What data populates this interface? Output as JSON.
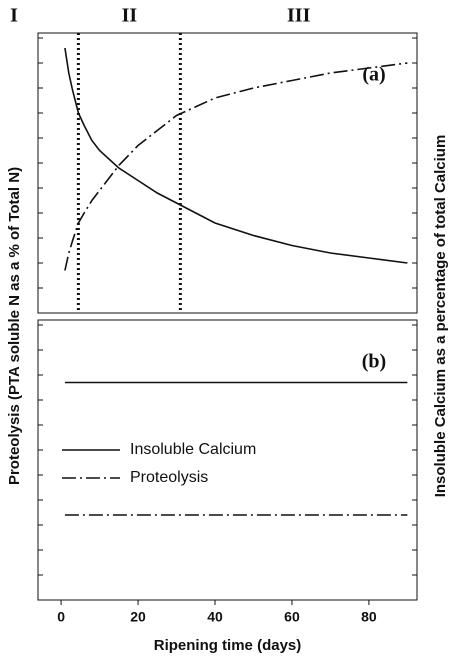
{
  "chart_data": [
    {
      "type": "line",
      "panel_label": "(a)",
      "ylabel": "Proteolysis (PTA soluble N as a % of Total N)",
      "y2label": "Insoluble Calcium as a percentage of total Calcium",
      "annotations": [
        "I",
        "II",
        "III"
      ],
      "vlines": [
        4.5,
        31
      ],
      "xlim": [
        -6,
        92.5
      ],
      "ylim": [
        0,
        11.2
      ],
      "yticks": [
        1,
        2,
        3,
        4,
        5,
        6,
        7,
        8,
        9,
        10,
        11
      ],
      "y2lim": [
        0,
        11.2
      ],
      "y2ticks": [
        1,
        2,
        3,
        4,
        5,
        6,
        7,
        8,
        9,
        10,
        11
      ],
      "x": [
        1,
        2,
        3,
        4.5,
        6,
        8,
        10,
        15,
        20,
        25,
        30,
        40,
        50,
        60,
        70,
        80,
        90
      ],
      "series": [
        {
          "color": "#111111",
          "style": "solid",
          "axis": "y2",
          "values": [
            10.6,
            9.6,
            8.9,
            8.0,
            7.5,
            6.9,
            6.5,
            5.8,
            5.3,
            4.8,
            4.4,
            3.6,
            3.1,
            2.7,
            2.4,
            2.2,
            2.0
          ]
        },
        {
          "color": "#111111",
          "style": "dashdot",
          "values": [
            1.7,
            2.4,
            2.9,
            3.6,
            4.0,
            4.5,
            4.9,
            5.9,
            6.7,
            7.3,
            7.9,
            8.6,
            9.0,
            9.3,
            9.6,
            9.8,
            10.0
          ]
        }
      ]
    },
    {
      "type": "line",
      "panel_label": "(b)",
      "xlabel": "Ripening time (days)",
      "legend": "center-left",
      "xlim": [
        -6,
        92.5
      ],
      "xticks": [
        0,
        20,
        40,
        60,
        80
      ],
      "ylim": [
        0,
        11.2
      ],
      "yticks": [
        1,
        2,
        3,
        4,
        5,
        6,
        7,
        8,
        9,
        10,
        11
      ],
      "y2lim": [
        0,
        11.2
      ],
      "y2ticks": [
        1,
        2,
        3,
        4,
        5,
        6,
        7,
        8,
        9,
        10,
        11
      ],
      "x": [
        1,
        90
      ],
      "series": [
        {
          "name": "Insoluble Calcium",
          "color": "#111111",
          "style": "solid",
          "axis": "y2",
          "values": [
            8.7,
            8.7
          ]
        },
        {
          "name": "Proteolysis",
          "color": "#111111",
          "style": "dashdot",
          "values": [
            3.4,
            3.4
          ]
        }
      ]
    }
  ]
}
